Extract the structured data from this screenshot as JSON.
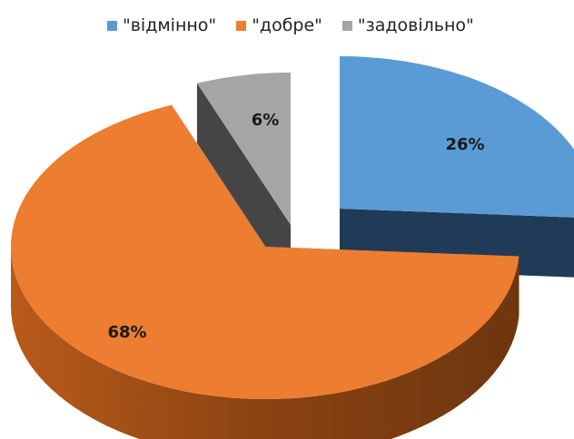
{
  "chart_data": {
    "type": "pie",
    "style": "3d-exploded",
    "categories": [
      "\"відмінно\"",
      "\"добре\"",
      "\"задовільно\""
    ],
    "values": [
      26,
      68,
      6
    ],
    "data_labels": [
      "26%",
      "68%",
      "6%"
    ],
    "colors": [
      "#5b9bd5",
      "#ed7d31",
      "#a5a5a5"
    ],
    "legend_position": "top"
  }
}
